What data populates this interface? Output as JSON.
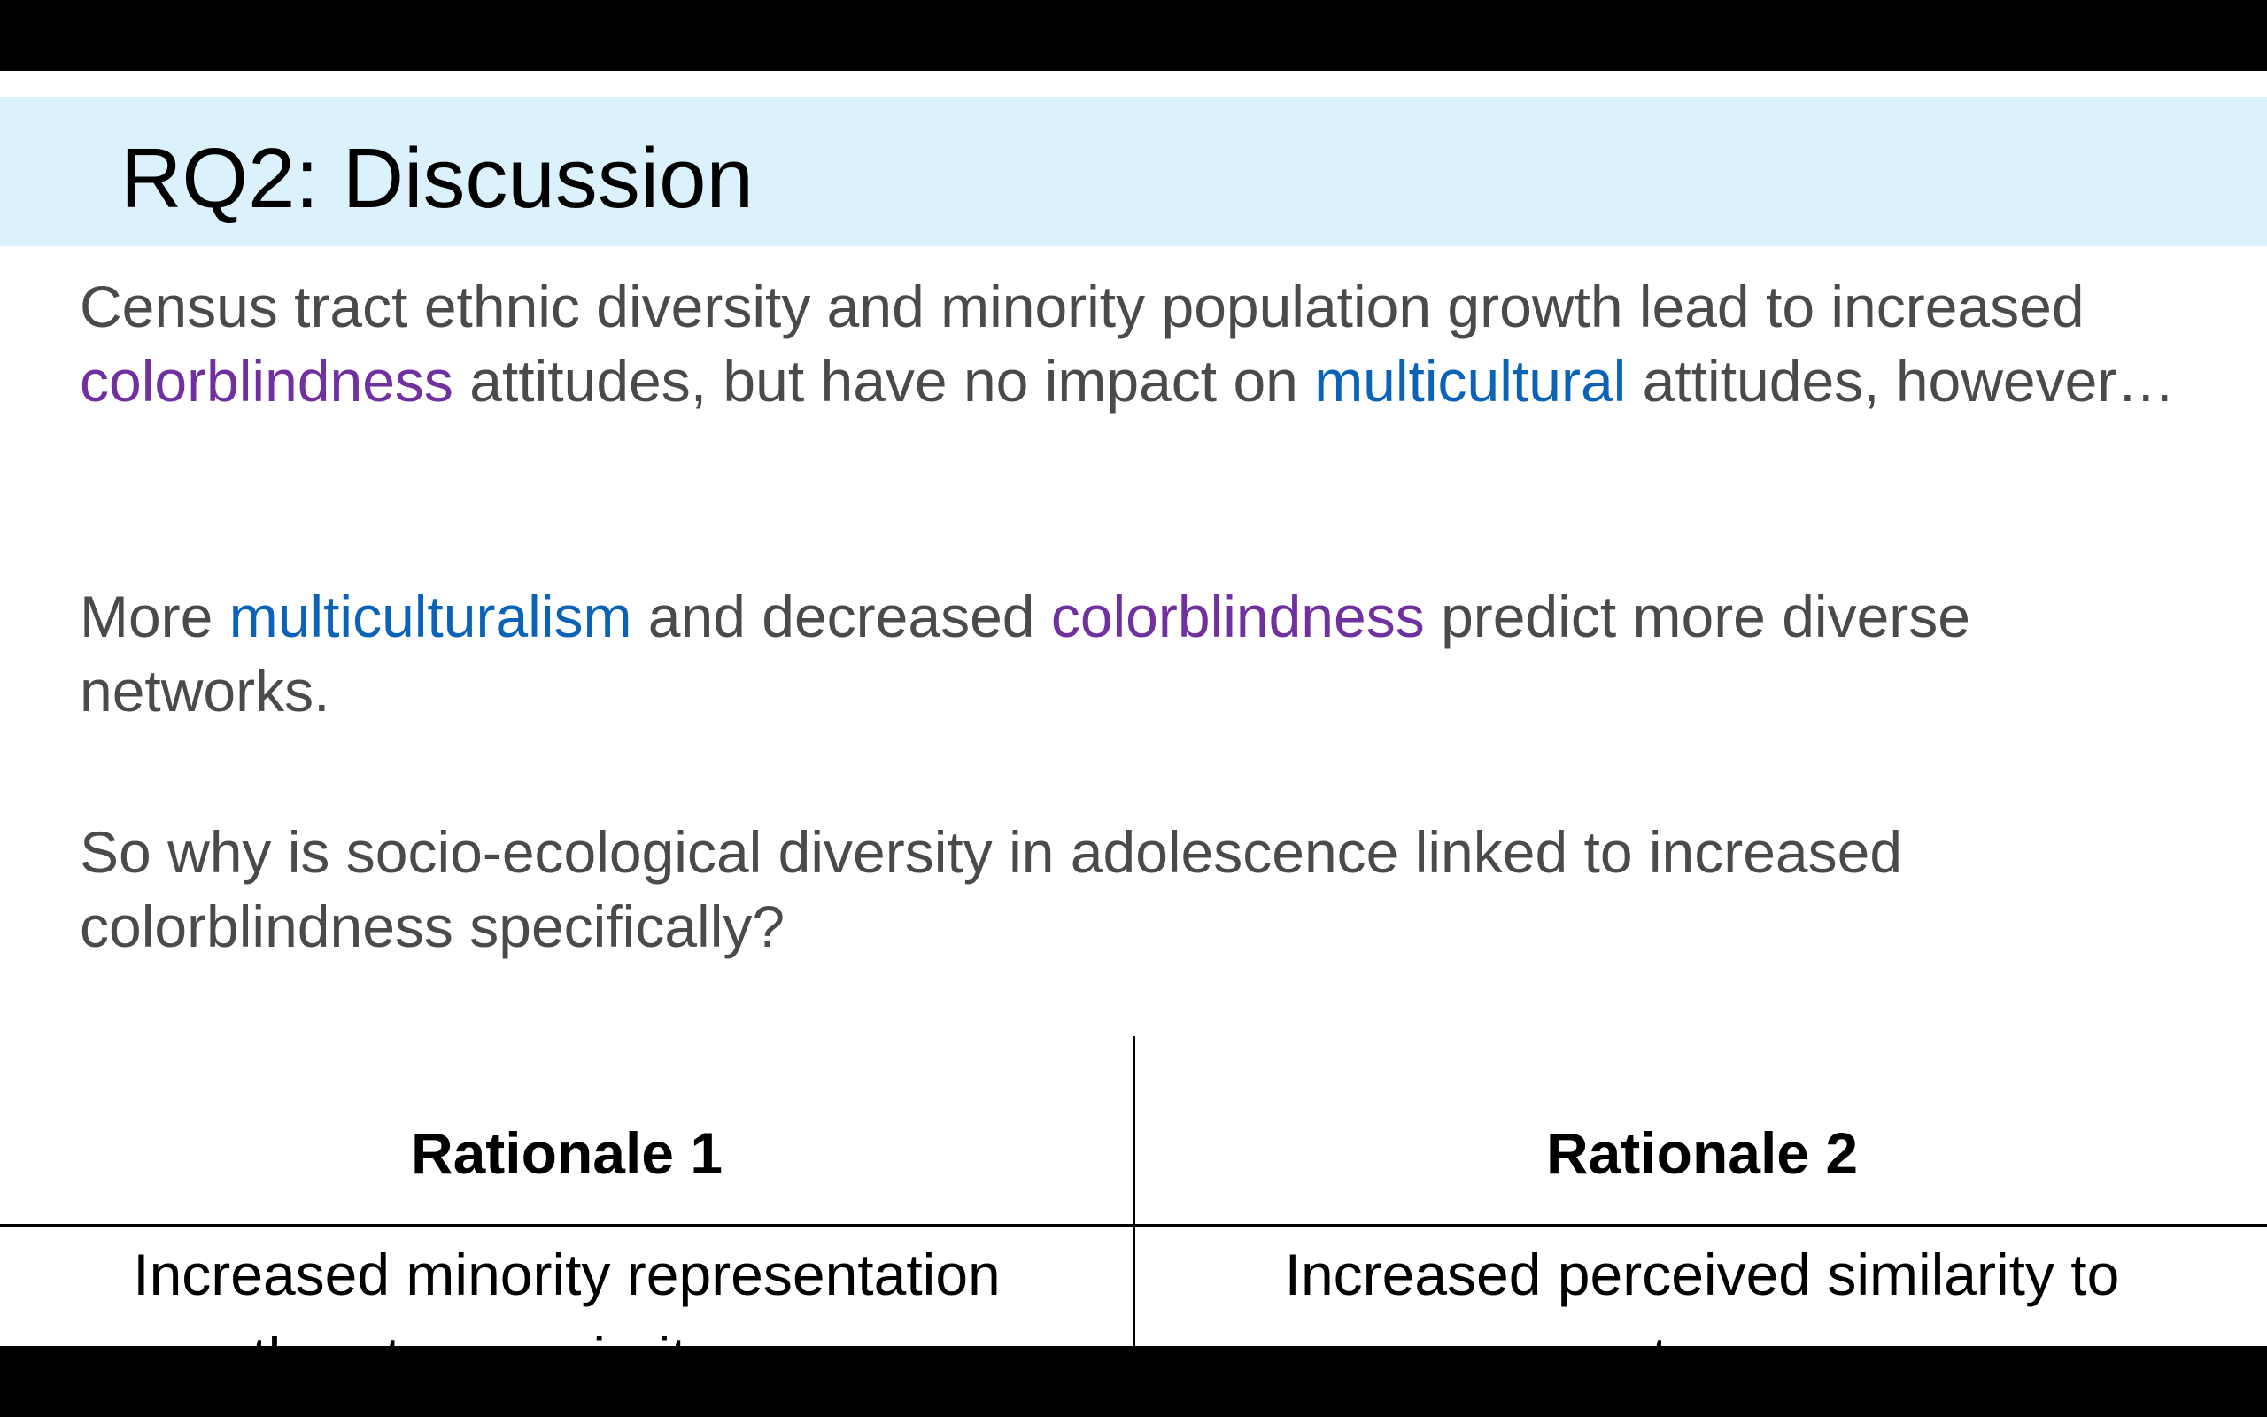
{
  "slide": {
    "title": "RQ2: Discussion",
    "paragraph1": {
      "part1": "Census tract ethnic diversity and minority population growth lead to increased ",
      "kw1": "colorblindness",
      "part2": " attitudes, but have no impact on ",
      "kw2": "multicultural",
      "part3": " attitudes, however…"
    },
    "paragraph2": {
      "part1": "More ",
      "kw1": "multiculturalism",
      "part2": " and decreased ",
      "kw2": "colorblindness",
      "part3": " predict more diverse networks."
    },
    "paragraph3": "So why is socio-ecological diversity in adolescence linked to increased colorblindness specifically?",
    "rationales": [
      {
        "heading": "Rationale 1",
        "text": "Increased minority representation threatens majority group"
      },
      {
        "heading": "Rationale 2",
        "text": "Increased perceived similarity to outgroup"
      }
    ]
  },
  "colors": {
    "title_band": "#dbf1fb",
    "body_text": "#4a4a4a",
    "keyword_colorblindness": "#7030a0",
    "keyword_multicultural": "#0b63b8"
  }
}
